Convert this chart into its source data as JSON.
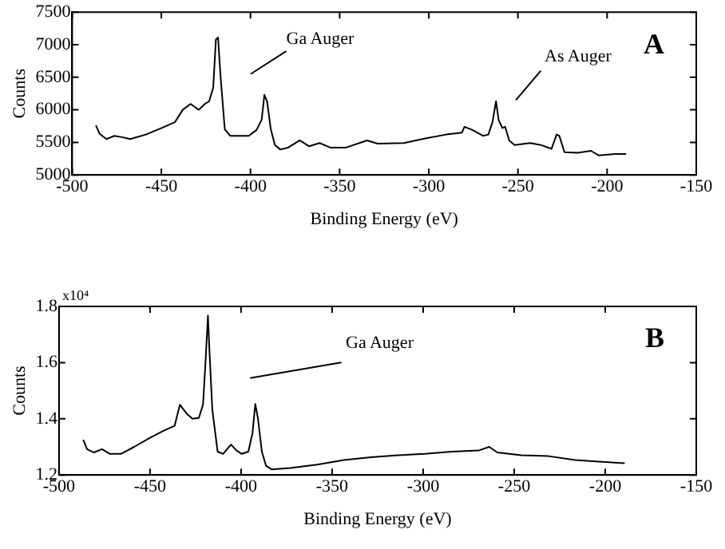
{
  "chart_data": [
    {
      "type": "line",
      "xlabel": "Binding Energy (eV)",
      "ylabel": "Counts",
      "xlim": [
        -500,
        -150
      ],
      "xticks": [
        -500,
        -450,
        -400,
        -350,
        -300,
        -250,
        -200,
        -150
      ],
      "ylim": [
        5000,
        7500
      ],
      "yticks": [
        5000,
        5500,
        6000,
        6500,
        7000,
        7500
      ],
      "annotations": [
        "A",
        "Ga Auger",
        "As Auger"
      ],
      "series": [
        {
          "color": "#000000",
          "x": [
            -486.7,
            -484.6,
            -480.8,
            -476.4,
            -472,
            -467.5,
            -458.7,
            -449.8,
            -442.4,
            -438,
            -433.6,
            -429,
            -425.6,
            -423.2,
            -420.9,
            -419.4,
            -418.2,
            -416.7,
            -414.4,
            -411.4,
            -405.5,
            -401,
            -396.6,
            -393.7,
            -392.2,
            -390.7,
            -388.6,
            -386.3,
            -383.3,
            -378.9,
            -372.4,
            -367.1,
            -361.2,
            -355.3,
            -346.4,
            -334.6,
            -328.7,
            -313.9,
            -302,
            -290.3,
            -281.4,
            -280,
            -275.5,
            -269.6,
            -266.6,
            -264.3,
            -262.3,
            -260.8,
            -258.7,
            -257.2,
            -254.9,
            -251.9,
            -243.1,
            -237.2,
            -231.2,
            -228.3,
            -226.8,
            -223.9,
            -216.5,
            -209.1,
            -204.7,
            -195.8,
            -189.3
          ],
          "values": [
            5760,
            5630,
            5550,
            5600,
            5580,
            5550,
            5620,
            5720,
            5810,
            6000,
            6090,
            6000,
            6090,
            6130,
            6340,
            7080,
            7110,
            6480,
            5700,
            5600,
            5600,
            5600,
            5690,
            5850,
            6230,
            6130,
            5700,
            5460,
            5390,
            5420,
            5530,
            5440,
            5490,
            5420,
            5420,
            5530,
            5480,
            5490,
            5560,
            5620,
            5650,
            5740,
            5690,
            5600,
            5620,
            5810,
            6130,
            5840,
            5720,
            5740,
            5530,
            5460,
            5490,
            5460,
            5400,
            5620,
            5600,
            5350,
            5340,
            5370,
            5300,
            5320,
            5320
          ]
        }
      ]
    },
    {
      "type": "line",
      "xlabel": "Binding Energy (eV)",
      "ylabel": "Counts",
      "xlim": [
        -500,
        -150
      ],
      "xticks": [
        -500,
        -450,
        -400,
        -350,
        -300,
        -250,
        -200,
        -150
      ],
      "ylim": [
        1.2,
        1.8
      ],
      "yticks": [
        1.2,
        1.4,
        1.6,
        1.8
      ],
      "annotations": [
        "B",
        "x10⁴",
        "Ga Auger"
      ],
      "series": [
        {
          "color": "#000000",
          "x": [
            -486.7,
            -484.6,
            -480.8,
            -476.4,
            -472,
            -466,
            -458.7,
            -449.8,
            -442.4,
            -436.5,
            -433.6,
            -429.7,
            -426.7,
            -423.2,
            -420.9,
            -419.4,
            -418.2,
            -417.3,
            -415.8,
            -412.9,
            -409.9,
            -405.5,
            -402.5,
            -399.6,
            -396,
            -393.7,
            -392.2,
            -390.7,
            -388.6,
            -386.3,
            -383.3,
            -373,
            -358.2,
            -343.5,
            -328.7,
            -313.9,
            -299.2,
            -284.4,
            -269.6,
            -263.7,
            -259.3,
            -246,
            -231.2,
            -216.5,
            -201.7,
            -189.3
          ],
          "values": [
            1.325,
            1.292,
            1.28,
            1.292,
            1.275,
            1.275,
            1.3,
            1.333,
            1.358,
            1.375,
            1.45,
            1.417,
            1.4,
            1.403,
            1.45,
            1.617,
            1.767,
            1.633,
            1.433,
            1.283,
            1.275,
            1.308,
            1.287,
            1.275,
            1.283,
            1.35,
            1.453,
            1.4,
            1.283,
            1.233,
            1.22,
            1.225,
            1.237,
            1.253,
            1.263,
            1.27,
            1.275,
            1.283,
            1.287,
            1.3,
            1.28,
            1.27,
            1.267,
            1.253,
            1.247,
            1.242
          ]
        }
      ]
    }
  ]
}
